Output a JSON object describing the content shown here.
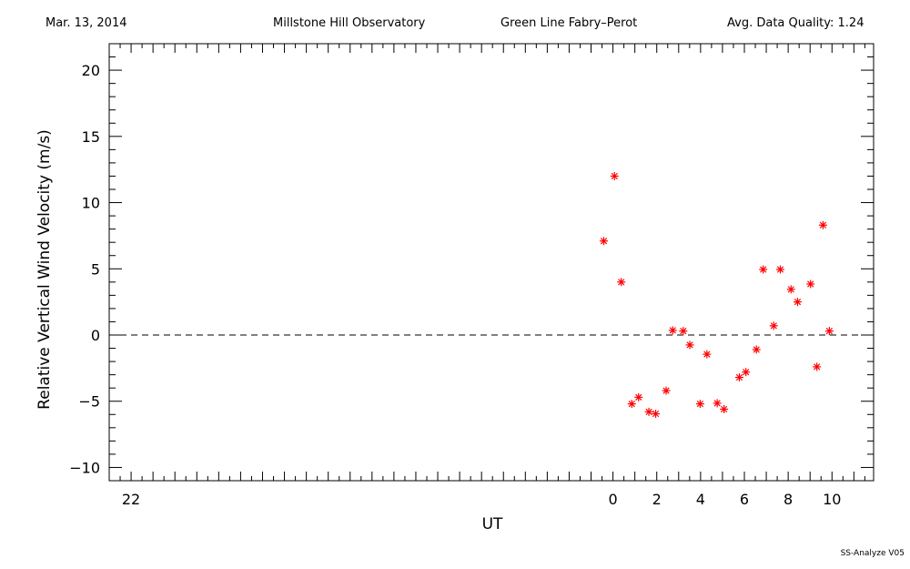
{
  "header": {
    "date": "Mar. 13, 2014",
    "observatory": "Millstone Hill Observatory",
    "instrument": "Green Line Fabry–Perot",
    "quality": "Avg. Data Quality: 1.24"
  },
  "footer": {
    "software": "SS-Analyze V05"
  },
  "chart_data": {
    "type": "scatter",
    "title": "",
    "xlabel": "UT",
    "ylabel": "Relative Vertical Wind Velocity (m/s)",
    "xlim": [
      -23.0,
      11.9
    ],
    "ylim": [
      -11.0,
      22.0
    ],
    "x_ticks": [
      {
        "value": -22,
        "label": "22"
      },
      {
        "value": 0,
        "label": "0"
      },
      {
        "value": 2,
        "label": "2"
      },
      {
        "value": 4,
        "label": "4"
      },
      {
        "value": 6,
        "label": "6"
      },
      {
        "value": 8,
        "label": "8"
      },
      {
        "value": 10,
        "label": "10"
      }
    ],
    "y_ticks": [
      {
        "value": -10,
        "label": "−10"
      },
      {
        "value": -5,
        "label": "−5"
      },
      {
        "value": 0,
        "label": "0"
      },
      {
        "value": 5,
        "label": "5"
      },
      {
        "value": 10,
        "label": "10"
      },
      {
        "value": 15,
        "label": "15"
      },
      {
        "value": 20,
        "label": "20"
      }
    ],
    "reference_line": {
      "y": 0,
      "style": "dashed"
    },
    "marker": "asterisk",
    "marker_color": "#ff0000",
    "points": [
      {
        "x": -0.42,
        "y": 7.1
      },
      {
        "x": 0.07,
        "y": 12.0
      },
      {
        "x": 0.38,
        "y": 4.0
      },
      {
        "x": 0.86,
        "y": -5.2
      },
      {
        "x": 1.17,
        "y": -4.7
      },
      {
        "x": 1.64,
        "y": -5.8
      },
      {
        "x": 1.95,
        "y": -5.95
      },
      {
        "x": 2.43,
        "y": -4.2
      },
      {
        "x": 2.73,
        "y": 0.35
      },
      {
        "x": 3.21,
        "y": 0.3
      },
      {
        "x": 3.51,
        "y": -0.75
      },
      {
        "x": 3.98,
        "y": -5.2
      },
      {
        "x": 4.29,
        "y": -1.45
      },
      {
        "x": 4.76,
        "y": -5.15
      },
      {
        "x": 5.07,
        "y": -5.6
      },
      {
        "x": 5.77,
        "y": -3.2
      },
      {
        "x": 6.07,
        "y": -2.8
      },
      {
        "x": 6.55,
        "y": -1.1
      },
      {
        "x": 6.86,
        "y": 4.95
      },
      {
        "x": 7.34,
        "y": 0.7
      },
      {
        "x": 7.64,
        "y": 4.95
      },
      {
        "x": 8.13,
        "y": 3.45
      },
      {
        "x": 8.43,
        "y": 2.5
      },
      {
        "x": 9.02,
        "y": 3.85
      },
      {
        "x": 9.31,
        "y": -2.4
      },
      {
        "x": 9.59,
        "y": 8.3
      },
      {
        "x": 9.88,
        "y": 0.3
      }
    ]
  }
}
